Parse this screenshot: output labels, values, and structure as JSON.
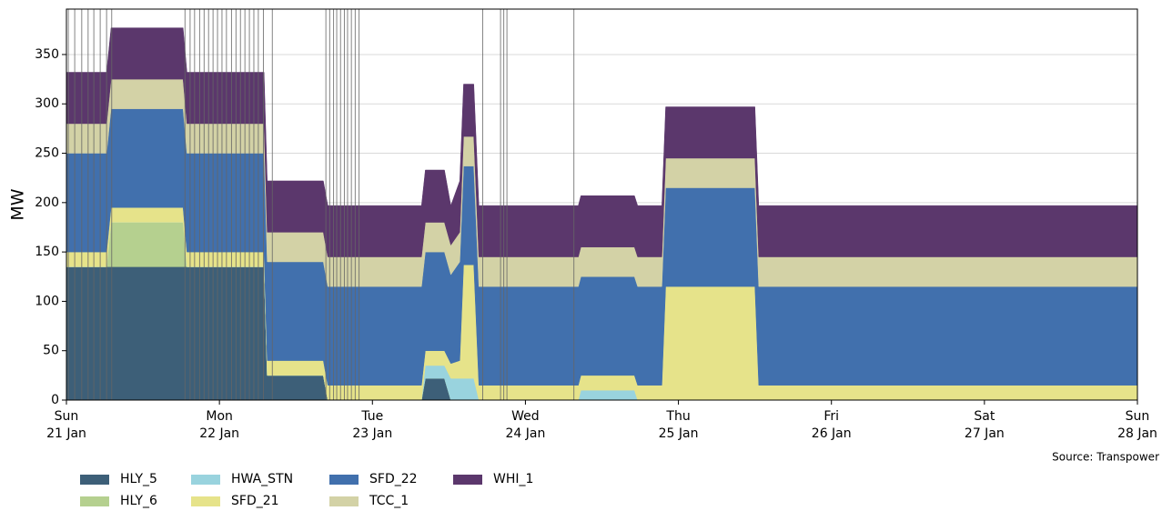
{
  "chart_data": {
    "type": "stacked_area",
    "y_label": "MW",
    "source": "Source: Transpower",
    "x": [
      0,
      6.3,
      7,
      18.3,
      18.9,
      31,
      31.5,
      40.3,
      41,
      55.7,
      56.3,
      59.3,
      60.3,
      61.7,
      62.3,
      63.9,
      64.7,
      80.3,
      80.7,
      89.1,
      89.6,
      93.4,
      94,
      108,
      108.6,
      168
    ],
    "series": [
      {
        "name": "HLY_5",
        "color": "#3d5f78",
        "values": [
          135,
          135,
          135,
          135,
          135,
          135,
          25,
          25,
          0,
          0,
          22,
          22,
          0,
          0,
          0,
          0,
          0,
          0,
          0,
          0,
          0,
          0,
          0,
          0,
          0,
          0
        ]
      },
      {
        "name": "HLY_6",
        "color": "#b5d08f",
        "values": [
          0,
          0,
          45,
          45,
          0,
          0,
          0,
          0,
          0,
          0,
          0,
          0,
          0,
          0,
          0,
          0,
          0,
          0,
          0,
          0,
          0,
          0,
          0,
          0,
          0,
          0
        ]
      },
      {
        "name": "HWA_STN",
        "color": "#99d3de",
        "values": [
          0,
          0,
          0,
          0,
          0,
          0,
          0,
          0,
          0,
          0,
          13,
          13,
          22,
          22,
          22,
          22,
          0,
          0,
          10,
          10,
          0,
          0,
          0,
          0,
          0,
          0
        ]
      },
      {
        "name": "SFD_21",
        "color": "#e6e38a",
        "values": [
          15,
          15,
          15,
          15,
          15,
          15,
          15,
          15,
          15,
          15,
          15,
          15,
          15,
          18,
          115,
          115,
          15,
          15,
          15,
          15,
          15,
          15,
          115,
          115,
          15,
          15
        ]
      },
      {
        "name": "SFD_22",
        "color": "#4170ad",
        "values": [
          100,
          100,
          100,
          100,
          100,
          100,
          100,
          100,
          100,
          100,
          100,
          100,
          90,
          100,
          100,
          100,
          100,
          100,
          100,
          100,
          100,
          100,
          100,
          100,
          100,
          100
        ]
      },
      {
        "name": "TCC_1",
        "color": "#d3d2a6",
        "values": [
          30,
          30,
          30,
          30,
          30,
          30,
          30,
          30,
          30,
          30,
          30,
          30,
          30,
          30,
          30,
          30,
          30,
          30,
          30,
          30,
          30,
          30,
          30,
          30,
          30,
          30
        ]
      },
      {
        "name": "WHI_1",
        "color": "#5b376c",
        "values": [
          52,
          52,
          52,
          52,
          52,
          52,
          52,
          52,
          52,
          52,
          53,
          53,
          40,
          52,
          53,
          53,
          52,
          52,
          52,
          52,
          52,
          52,
          52,
          52,
          52,
          52
        ]
      }
    ],
    "vlines": [
      0.3,
      1.3,
      2.4,
      3.4,
      4.3,
      5.3,
      6.3,
      7.1,
      18.6,
      19.4,
      20.1,
      20.9,
      21.6,
      22.3,
      23,
      23.7,
      24.4,
      25.1,
      25.9,
      26.6,
      27.3,
      28,
      28.7,
      29.4,
      30.1,
      30.9,
      32.3,
      40.7,
      41.3,
      41.9,
      42.4,
      43,
      43.6,
      44.1,
      44.7,
      45.3,
      45.9,
      65.3,
      68.1,
      68.6,
      69.1,
      79.6
    ],
    "xlim": [
      0,
      168
    ],
    "xticks": [
      {
        "value": 0,
        "label": [
          "Sun",
          "21 Jan"
        ]
      },
      {
        "value": 24,
        "label": [
          "Mon",
          "22 Jan"
        ]
      },
      {
        "value": 48,
        "label": [
          "Tue",
          "23 Jan"
        ]
      },
      {
        "value": 72,
        "label": [
          "Wed",
          "24 Jan"
        ]
      },
      {
        "value": 96,
        "label": [
          "Thu",
          "25 Jan"
        ]
      },
      {
        "value": 120,
        "label": [
          "Fri",
          "26 Jan"
        ]
      },
      {
        "value": 144,
        "label": [
          "Sat",
          "27 Jan"
        ]
      },
      {
        "value": 168,
        "label": [
          "Sun",
          "28 Jan"
        ]
      }
    ],
    "ylim": [
      0,
      396
    ],
    "yticks": [
      0,
      50,
      100,
      150,
      200,
      250,
      300,
      350
    ],
    "grid": true
  }
}
